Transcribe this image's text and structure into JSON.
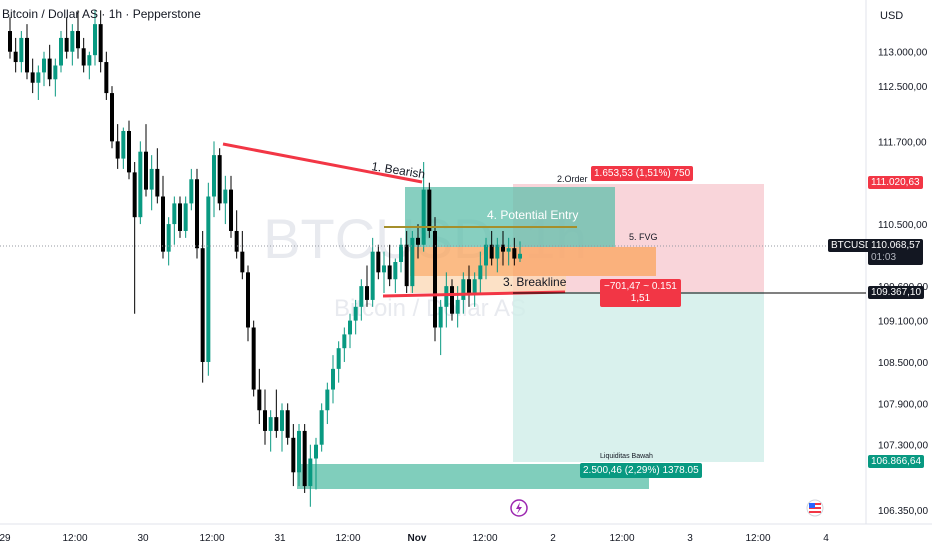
{
  "header": {
    "symbol_title": "Bitcoin / Dollar AS · 1h · Pepperstone"
  },
  "currency_label": "USD",
  "watermark": {
    "ticker": "BTCUSD, 1h",
    "name": "Bitcoin / Dollar AS"
  },
  "price_axis_labels": [
    "113.000,00",
    "112.500,00",
    "111.700,00",
    "110.500,00",
    "109.600,00",
    "109.100,00",
    "108.500,00",
    "107.900,00",
    "107.300,00",
    "106.350,00"
  ],
  "time_axis_labels": [
    "29",
    "12:00",
    "30",
    "12:00",
    "31",
    "12:00",
    "Nov",
    "12:00",
    "2",
    "12:00",
    "3",
    "12:00",
    "4"
  ],
  "price_tags": {
    "target": "111.020,63",
    "symbol": "BTCUSD",
    "last": "110.068,57",
    "countdown": "01:03",
    "stop": "109.367,10",
    "liquidity": "106.866,64"
  },
  "annotations": {
    "bearish": "1. Bearish",
    "order": "2.Order",
    "order_info": "1.653,53 (1,51%) 750",
    "potential_entry": "4. Potential Entry",
    "fvg": "5. FVG",
    "breakline": "3. Breakline",
    "risk_line1": "−701,47 ~ 0.151",
    "risk_line2": "1,51",
    "liquidity_title": "Liquiditas Bawah",
    "liquidity_info": "2.500,46 (2,29%) 1378.05"
  },
  "icons": {
    "event_icon": "lightning-icon",
    "flag_icon": "us-flag-icon"
  },
  "colors": {
    "up": "#089981",
    "down": "#000000",
    "bearish_line": "#f23645",
    "target_zone": "#f7c7cd",
    "profit_zone": "#cfeee8",
    "entry_zone": "#5fbfab",
    "fvg_zone": "#f9a45c",
    "liquidity_zone": "#72c9b5"
  },
  "chart_data": {
    "type": "candlestick",
    "title": "Bitcoin / Dollar AS · 1h · Pepperstone",
    "y_axis": "USD",
    "ylim": [
      106150,
      113750
    ],
    "x_range": [
      "29 Oct",
      "4 Nov"
    ],
    "candles": [
      {
        "o": 113300,
        "h": 113500,
        "l": 112900,
        "c": 113000
      },
      {
        "o": 113000,
        "h": 113200,
        "l": 112700,
        "c": 112850
      },
      {
        "o": 112850,
        "h": 113300,
        "l": 112700,
        "c": 113200
      },
      {
        "o": 113200,
        "h": 113400,
        "l": 112600,
        "c": 112700
      },
      {
        "o": 112700,
        "h": 112900,
        "l": 112400,
        "c": 112550
      },
      {
        "o": 112550,
        "h": 112800,
        "l": 112300,
        "c": 112700
      },
      {
        "o": 112700,
        "h": 113000,
        "l": 112500,
        "c": 112900
      },
      {
        "o": 112900,
        "h": 113100,
        "l": 112500,
        "c": 112600
      },
      {
        "o": 112600,
        "h": 112900,
        "l": 112350,
        "c": 112800
      },
      {
        "o": 112800,
        "h": 113300,
        "l": 112700,
        "c": 113200
      },
      {
        "o": 113200,
        "h": 113500,
        "l": 112900,
        "c": 113000
      },
      {
        "o": 113000,
        "h": 113400,
        "l": 112800,
        "c": 113300
      },
      {
        "o": 113300,
        "h": 113600,
        "l": 112900,
        "c": 113050
      },
      {
        "o": 113050,
        "h": 113200,
        "l": 112700,
        "c": 112800
      },
      {
        "o": 112800,
        "h": 113000,
        "l": 112600,
        "c": 112950
      },
      {
        "o": 112950,
        "h": 113600,
        "l": 112800,
        "c": 113400
      },
      {
        "o": 113400,
        "h": 113600,
        "l": 112700,
        "c": 112850
      },
      {
        "o": 112850,
        "h": 113000,
        "l": 112300,
        "c": 112400
      },
      {
        "o": 112400,
        "h": 112500,
        "l": 111600,
        "c": 111700
      },
      {
        "o": 111700,
        "h": 111950,
        "l": 111300,
        "c": 111450
      },
      {
        "o": 111450,
        "h": 111900,
        "l": 111300,
        "c": 111850
      },
      {
        "o": 111850,
        "h": 112000,
        "l": 111150,
        "c": 111250
      },
      {
        "o": 111250,
        "h": 111400,
        "l": 109200,
        "c": 110600
      },
      {
        "o": 110600,
        "h": 111700,
        "l": 110500,
        "c": 111550
      },
      {
        "o": 111550,
        "h": 111950,
        "l": 110900,
        "c": 111000
      },
      {
        "o": 111000,
        "h": 111500,
        "l": 110700,
        "c": 111300
      },
      {
        "o": 111300,
        "h": 111600,
        "l": 110800,
        "c": 110900
      },
      {
        "o": 110900,
        "h": 111200,
        "l": 110000,
        "c": 110100
      },
      {
        "o": 110100,
        "h": 110600,
        "l": 109900,
        "c": 110500
      },
      {
        "o": 110500,
        "h": 110900,
        "l": 110200,
        "c": 110800
      },
      {
        "o": 110800,
        "h": 110900,
        "l": 110300,
        "c": 110400
      },
      {
        "o": 110400,
        "h": 110900,
        "l": 110300,
        "c": 110800
      },
      {
        "o": 110800,
        "h": 111300,
        "l": 110700,
        "c": 111150
      },
      {
        "o": 111150,
        "h": 111300,
        "l": 110000,
        "c": 110150
      },
      {
        "o": 110150,
        "h": 110400,
        "l": 108200,
        "c": 108500
      },
      {
        "o": 108500,
        "h": 111100,
        "l": 108300,
        "c": 110900
      },
      {
        "o": 110900,
        "h": 111700,
        "l": 110600,
        "c": 111500
      },
      {
        "o": 111500,
        "h": 111600,
        "l": 110700,
        "c": 110800
      },
      {
        "o": 110800,
        "h": 111200,
        "l": 110500,
        "c": 111000
      },
      {
        "o": 111000,
        "h": 111200,
        "l": 110300,
        "c": 110400
      },
      {
        "o": 110400,
        "h": 110700,
        "l": 110000,
        "c": 110100
      },
      {
        "o": 110100,
        "h": 110400,
        "l": 109700,
        "c": 109800
      },
      {
        "o": 109800,
        "h": 109900,
        "l": 108800,
        "c": 109000
      },
      {
        "o": 109000,
        "h": 109100,
        "l": 108000,
        "c": 108100
      },
      {
        "o": 108100,
        "h": 108400,
        "l": 107600,
        "c": 107800
      },
      {
        "o": 107800,
        "h": 108100,
        "l": 107300,
        "c": 107500
      },
      {
        "o": 107500,
        "h": 107800,
        "l": 107200,
        "c": 107700
      },
      {
        "o": 107700,
        "h": 108100,
        "l": 107400,
        "c": 107500
      },
      {
        "o": 107500,
        "h": 107900,
        "l": 107200,
        "c": 107800
      },
      {
        "o": 107800,
        "h": 107900,
        "l": 107300,
        "c": 107400
      },
      {
        "o": 107400,
        "h": 107600,
        "l": 106700,
        "c": 106900
      },
      {
        "o": 106900,
        "h": 107600,
        "l": 106700,
        "c": 107500
      },
      {
        "o": 107500,
        "h": 107600,
        "l": 106600,
        "c": 106700
      },
      {
        "o": 106700,
        "h": 107300,
        "l": 106400,
        "c": 107100
      },
      {
        "o": 107100,
        "h": 107400,
        "l": 106650,
        "c": 107300
      },
      {
        "o": 107300,
        "h": 107900,
        "l": 107200,
        "c": 107800
      },
      {
        "o": 107800,
        "h": 108200,
        "l": 107600,
        "c": 108100
      },
      {
        "o": 108100,
        "h": 108600,
        "l": 107900,
        "c": 108400
      },
      {
        "o": 108400,
        "h": 108800,
        "l": 108200,
        "c": 108700
      },
      {
        "o": 108700,
        "h": 109000,
        "l": 108500,
        "c": 108900
      },
      {
        "o": 108900,
        "h": 109200,
        "l": 108700,
        "c": 109100
      },
      {
        "o": 109100,
        "h": 109400,
        "l": 108900,
        "c": 109300
      },
      {
        "o": 109300,
        "h": 109700,
        "l": 109100,
        "c": 109600
      },
      {
        "o": 109600,
        "h": 109900,
        "l": 109300,
        "c": 109400
      },
      {
        "o": 109400,
        "h": 110300,
        "l": 109300,
        "c": 110100
      },
      {
        "o": 110100,
        "h": 110200,
        "l": 109700,
        "c": 109800
      },
      {
        "o": 109800,
        "h": 110100,
        "l": 109500,
        "c": 109900
      },
      {
        "o": 109900,
        "h": 110200,
        "l": 109600,
        "c": 109700
      },
      {
        "o": 109700,
        "h": 110000,
        "l": 109500,
        "c": 109950
      },
      {
        "o": 109950,
        "h": 110300,
        "l": 109800,
        "c": 110200
      },
      {
        "o": 110200,
        "h": 110400,
        "l": 109500,
        "c": 109600
      },
      {
        "o": 109600,
        "h": 110400,
        "l": 109500,
        "c": 110300
      },
      {
        "o": 110300,
        "h": 110500,
        "l": 110000,
        "c": 110200
      },
      {
        "o": 110200,
        "h": 111400,
        "l": 110100,
        "c": 111000
      },
      {
        "o": 111000,
        "h": 111100,
        "l": 110300,
        "c": 110400
      },
      {
        "o": 110400,
        "h": 110600,
        "l": 108800,
        "c": 109000
      },
      {
        "o": 109000,
        "h": 109400,
        "l": 108600,
        "c": 109300
      },
      {
        "o": 109300,
        "h": 109800,
        "l": 109000,
        "c": 109600
      },
      {
        "o": 109600,
        "h": 109700,
        "l": 109100,
        "c": 109200
      },
      {
        "o": 109200,
        "h": 109600,
        "l": 109000,
        "c": 109400
      },
      {
        "o": 109400,
        "h": 109800,
        "l": 109200,
        "c": 109700
      },
      {
        "o": 109700,
        "h": 109900,
        "l": 109300,
        "c": 109500
      },
      {
        "o": 109500,
        "h": 109800,
        "l": 109300,
        "c": 109700
      },
      {
        "o": 109700,
        "h": 110100,
        "l": 109500,
        "c": 109900
      },
      {
        "o": 109900,
        "h": 110300,
        "l": 109700,
        "c": 110200
      },
      {
        "o": 110200,
        "h": 110400,
        "l": 109900,
        "c": 110000
      },
      {
        "o": 110000,
        "h": 110300,
        "l": 109800,
        "c": 110200
      },
      {
        "o": 110200,
        "h": 110400,
        "l": 109900,
        "c": 110100
      },
      {
        "o": 110100,
        "h": 110300,
        "l": 109900,
        "c": 110150
      },
      {
        "o": 110150,
        "h": 110300,
        "l": 109900,
        "c": 110000
      },
      {
        "o": 110000,
        "h": 110250,
        "l": 109950,
        "c": 110068.57
      }
    ],
    "levels": {
      "target": 111020.63,
      "last": 110068.57,
      "stop": 109367.1,
      "liquidity": 106866.64
    }
  }
}
